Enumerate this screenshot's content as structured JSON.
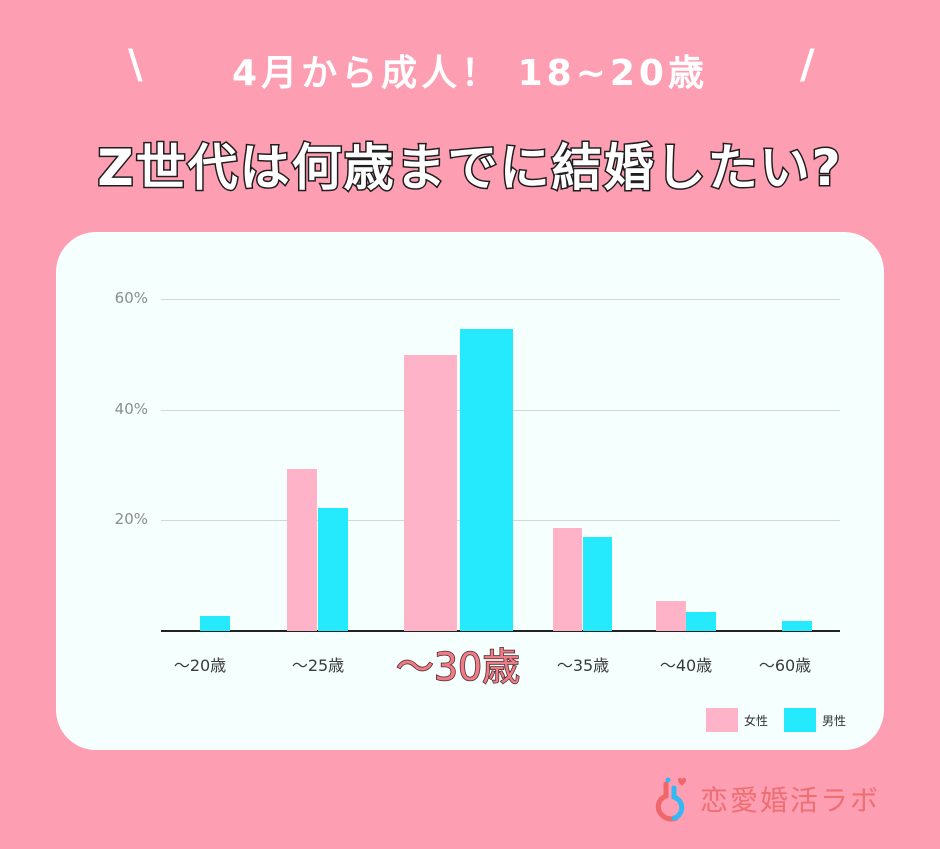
{
  "header": {
    "subtitle": "4月から成人！ 18~20歳",
    "slash_left": "\\",
    "slash_right": "/",
    "title": "Z世代は何歳までに結婚したい?"
  },
  "colors": {
    "background": "#fd9eb3",
    "card": "#f4fffe",
    "female": "#ffb3c8",
    "male": "#25e9fd",
    "highlight_label": "#ee7b86"
  },
  "chart_data": {
    "type": "bar",
    "title": "Z世代は何歳までに結婚したい?",
    "subtitle": "4月から成人！ 18~20歳",
    "categories": [
      "～20歳",
      "～25歳",
      "～30歳",
      "～35歳",
      "～40歳",
      "～60歳"
    ],
    "highlighted_category": "～30歳",
    "series": [
      {
        "name": "女性",
        "color": "#ffb3c8",
        "values": [
          0,
          29.3,
          49.9,
          18.6,
          5.4,
          0
        ]
      },
      {
        "name": "男性",
        "color": "#25e9fd",
        "values": [
          2.7,
          22.2,
          54.6,
          17.0,
          3.4,
          1.8
        ]
      }
    ],
    "xlabel": "",
    "ylabel": "",
    "ylim": [
      0,
      60
    ],
    "yticks": [
      "20%",
      "40%",
      "60%"
    ],
    "grid": true,
    "legend_position": "bottom-right"
  },
  "legend": {
    "female": "女性",
    "male": "男性"
  },
  "logo": {
    "text": "恋愛婚活ラボ"
  }
}
